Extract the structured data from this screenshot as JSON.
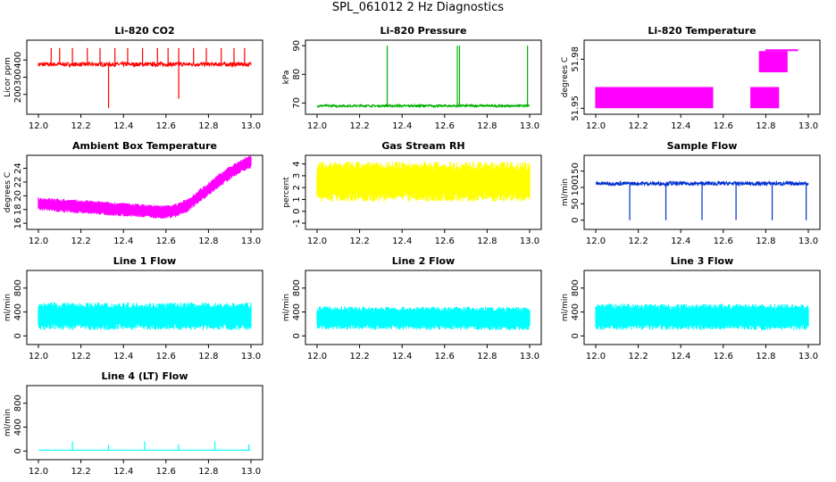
{
  "title": "SPL_061012  2 Hz Diagnostics",
  "chart_data": [
    {
      "id": "co2",
      "type": "line",
      "title": "Li-820 CO2",
      "ylabel": "Licor ppm",
      "color": "#ff0000",
      "xlim": [
        12.0,
        13.0
      ],
      "ylim": [
        100,
        500
      ],
      "xticks": [
        "12.0",
        "12.2",
        "12.4",
        "12.6",
        "12.8",
        "13.0"
      ],
      "yticks": [
        200,
        300,
        400
      ],
      "ytick_labels": [
        "200",
        "300",
        "400"
      ],
      "baseline": 375,
      "noise": 12,
      "spikes": [
        [
          12.06,
          470
        ],
        [
          12.1,
          470
        ],
        [
          12.16,
          470
        ],
        [
          12.23,
          470
        ],
        [
          12.29,
          470
        ],
        [
          12.33,
          120
        ],
        [
          12.36,
          470
        ],
        [
          12.42,
          470
        ],
        [
          12.49,
          470
        ],
        [
          12.56,
          470
        ],
        [
          12.61,
          470
        ],
        [
          12.66,
          175
        ],
        [
          12.66,
          470
        ],
        [
          12.73,
          470
        ],
        [
          12.79,
          470
        ],
        [
          12.86,
          470
        ],
        [
          12.92,
          470
        ],
        [
          12.97,
          470
        ]
      ]
    },
    {
      "id": "pressure",
      "type": "line",
      "title": "Li-820 Pressure",
      "ylabel": "kPa",
      "color": "#00b000",
      "xlim": [
        12.0,
        13.0
      ],
      "ylim": [
        67,
        91
      ],
      "xticks": [
        "12.0",
        "12.2",
        "12.4",
        "12.6",
        "12.8",
        "13.0"
      ],
      "yticks": [
        70,
        80,
        90
      ],
      "ytick_labels": [
        "70",
        "80",
        "90"
      ],
      "baseline": 69,
      "noise": 0.4,
      "spikes": [
        [
          12.33,
          90
        ],
        [
          12.66,
          90
        ],
        [
          12.67,
          90
        ],
        [
          12.99,
          90
        ]
      ]
    },
    {
      "id": "temperature",
      "type": "band",
      "title": "Li-820 Temperature",
      "ylabel": "degrees C",
      "color": "#ff00ff",
      "xlim": [
        12.0,
        13.0
      ],
      "ylim": [
        51.948,
        51.99
      ],
      "xticks": [
        "12.0",
        "12.2",
        "12.4",
        "12.6",
        "12.8",
        "13.0"
      ],
      "yticks": [
        51.95,
        51.98
      ],
      "ytick_labels": [
        "51.95",
        "51.98"
      ],
      "segments": [
        [
          12.0,
          12.28,
          51.95,
          51.963
        ],
        [
          12.28,
          12.55,
          51.95,
          51.963
        ],
        [
          12.73,
          12.86,
          51.95,
          51.963
        ],
        [
          12.77,
          12.9,
          51.972,
          51.985
        ],
        [
          12.8,
          12.95,
          51.985,
          51.986
        ]
      ]
    },
    {
      "id": "ambient",
      "type": "band",
      "title": "Ambient Box Temperature",
      "ylabel": "degrees C",
      "color": "#ff00ff",
      "xlim": [
        12.0,
        13.0
      ],
      "ylim": [
        15.5,
        25.5
      ],
      "xticks": [
        "12.0",
        "12.2",
        "12.4",
        "12.6",
        "12.8",
        "13.0"
      ],
      "yticks": [
        16,
        18,
        20,
        22,
        24
      ],
      "ytick_labels": [
        "16",
        "18",
        "20",
        "22",
        "24"
      ],
      "curve": [
        [
          12.0,
          18.8
        ],
        [
          12.1,
          18.6
        ],
        [
          12.2,
          18.4
        ],
        [
          12.3,
          18.2
        ],
        [
          12.4,
          18.0
        ],
        [
          12.5,
          17.8
        ],
        [
          12.6,
          17.6
        ],
        [
          12.65,
          17.9
        ],
        [
          12.7,
          18.6
        ],
        [
          12.75,
          19.8
        ],
        [
          12.8,
          21.0
        ],
        [
          12.85,
          22.2
        ],
        [
          12.9,
          23.3
        ],
        [
          12.95,
          24.3
        ],
        [
          13.0,
          25.0
        ]
      ],
      "spread": 1.0
    },
    {
      "id": "rh",
      "type": "band",
      "title": "Gas Stream RH",
      "ylabel": "percent",
      "color": "#ffff00",
      "xlim": [
        12.0,
        13.0
      ],
      "ylim": [
        -1.3,
        4.5
      ],
      "xticks": [
        "12.0",
        "12.2",
        "12.4",
        "12.6",
        "12.8",
        "13.0"
      ],
      "yticks": [
        -1,
        0,
        1,
        2,
        3,
        4
      ],
      "ytick_labels": [
        "-1",
        "0",
        "1",
        "2",
        "3",
        "4"
      ],
      "curve": [
        [
          12.0,
          2.5
        ],
        [
          13.0,
          2.5
        ]
      ],
      "spread": 1.7
    },
    {
      "id": "sampleflow",
      "type": "line",
      "title": "Sample Flow",
      "ylabel": "ml/min",
      "color": "#0030d0",
      "xlim": [
        12.0,
        13.0
      ],
      "ylim": [
        -20,
        190
      ],
      "xticks": [
        "12.0",
        "12.2",
        "12.4",
        "12.6",
        "12.8",
        "13.0"
      ],
      "yticks": [
        0,
        50,
        100,
        150
      ],
      "ytick_labels": [
        "0",
        "50",
        "100",
        "150"
      ],
      "baseline": 112,
      "noise": 6,
      "spikes": [
        [
          12.16,
          0
        ],
        [
          12.33,
          0
        ],
        [
          12.5,
          0
        ],
        [
          12.66,
          0
        ],
        [
          12.83,
          0
        ],
        [
          12.99,
          0
        ]
      ]
    },
    {
      "id": "line1",
      "type": "band",
      "title": "Line 1 Flow",
      "ylabel": "ml/min",
      "color": "#00ffff",
      "xlim": [
        12.0,
        13.0
      ],
      "ylim": [
        -100,
        1050
      ],
      "xticks": [
        "12.0",
        "12.2",
        "12.4",
        "12.6",
        "12.8",
        "13.0"
      ],
      "yticks": [
        0,
        400,
        800
      ],
      "ytick_labels": [
        "0",
        "400",
        "800"
      ],
      "curve": [
        [
          12.0,
          330
        ],
        [
          13.0,
          330
        ]
      ],
      "spread": 230
    },
    {
      "id": "line2",
      "type": "band",
      "title": "Line 2 Flow",
      "ylabel": "ml/min",
      "color": "#00ffff",
      "xlim": [
        12.0,
        13.0
      ],
      "ylim": [
        -100,
        1050
      ],
      "xticks": [
        "12.0",
        "12.2",
        "12.4",
        "12.6",
        "12.8",
        "13.0"
      ],
      "yticks": [
        0,
        400,
        800
      ],
      "ytick_labels": [
        "0",
        "400",
        "800"
      ],
      "curve": [
        [
          12.0,
          300
        ],
        [
          13.0,
          290
        ]
      ],
      "spread": 195
    },
    {
      "id": "line3",
      "type": "band",
      "title": "Line 3 Flow",
      "ylabel": "ml/min",
      "color": "#00ffff",
      "xlim": [
        12.0,
        13.0
      ],
      "ylim": [
        -100,
        1050
      ],
      "xticks": [
        "12.0",
        "12.2",
        "12.4",
        "12.6",
        "12.8",
        "13.0"
      ],
      "yticks": [
        0,
        400,
        800
      ],
      "ytick_labels": [
        "0",
        "400",
        "800"
      ],
      "curve": [
        [
          12.0,
          320
        ],
        [
          13.0,
          315
        ]
      ],
      "spread": 220
    },
    {
      "id": "line4",
      "type": "line",
      "title": "Line 4 (LT) Flow",
      "ylabel": "ml/min",
      "color": "#00ffff",
      "xlim": [
        12.0,
        13.0
      ],
      "ylim": [
        -100,
        1050
      ],
      "xticks": [
        "12.0",
        "12.2",
        "12.4",
        "12.6",
        "12.8",
        "13.0"
      ],
      "yticks": [
        0,
        400,
        800
      ],
      "ytick_labels": [
        "0",
        "400",
        "800"
      ],
      "baseline": 15,
      "noise": 3,
      "spikes": [
        [
          12.16,
          160
        ],
        [
          12.33,
          100
        ],
        [
          12.5,
          160
        ],
        [
          12.66,
          110
        ],
        [
          12.83,
          160
        ],
        [
          12.99,
          110
        ]
      ]
    }
  ]
}
